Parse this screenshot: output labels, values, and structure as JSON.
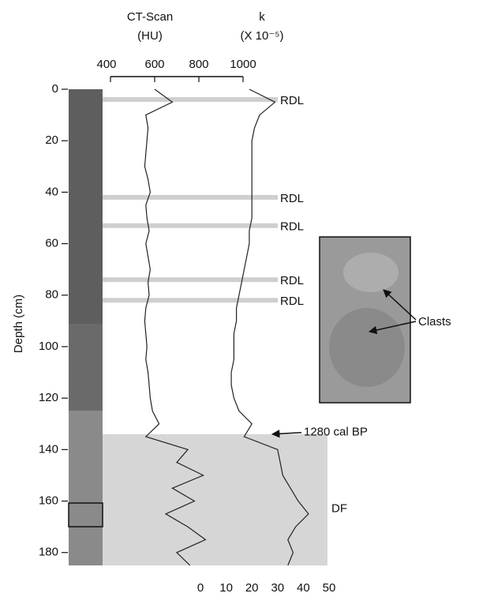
{
  "chart_data": {
    "type": "line",
    "ylabel": "Depth (cm)",
    "x_label": [
      "CT-Scan",
      "(HU)"
    ],
    "x2_label": [
      "k",
      "(X 10⁻⁵)"
    ],
    "ylim": [
      0,
      185
    ],
    "yticks": [
      0,
      20,
      40,
      60,
      80,
      100,
      120,
      140,
      160,
      180
    ],
    "xlim": [
      400,
      1000
    ],
    "xticks": [
      400,
      600,
      800,
      1000
    ],
    "x2lim": [
      0,
      50
    ],
    "x2ticks": [
      0,
      10,
      20,
      30,
      40,
      50
    ],
    "depth": [
      0,
      5,
      10,
      15,
      20,
      25,
      30,
      35,
      40,
      45,
      50,
      55,
      60,
      65,
      70,
      75,
      80,
      85,
      90,
      95,
      100,
      105,
      110,
      115,
      120,
      125,
      130,
      135,
      140,
      145,
      150,
      155,
      160,
      165,
      170,
      175,
      180,
      185
    ],
    "series": [
      {
        "color": "#222222",
        "axis": "x",
        "values": [
          600,
          680,
          560,
          570,
          565,
          560,
          555,
          570,
          580,
          560,
          565,
          575,
          560,
          570,
          580,
          570,
          575,
          560,
          555,
          560,
          565,
          560,
          570,
          575,
          580,
          590,
          620,
          560,
          750,
          700,
          820,
          680,
          780,
          650,
          750,
          830,
          700,
          760
        ]
      },
      {
        "color": "#222222",
        "axis": "x2",
        "values": [
          19,
          29,
          23,
          21,
          20,
          20,
          20,
          20,
          20,
          20,
          20,
          19,
          19,
          18,
          17,
          16,
          15,
          14,
          14,
          13,
          13,
          13,
          12,
          12,
          13,
          15,
          20,
          17,
          30,
          31,
          32,
          35,
          38,
          42,
          37,
          34,
          36,
          34
        ]
      }
    ],
    "rdl": [
      {
        "text": "RDL",
        "depth": 4
      },
      {
        "text": "RDL",
        "depth": 42
      },
      {
        "text": "RDL",
        "depth": 53
      },
      {
        "text": "RDL",
        "depth": 74
      },
      {
        "text": "RDL",
        "depth": 82
      }
    ],
    "date_annotation": {
      "text": "1280 cal BP",
      "depth": 134
    },
    "df": {
      "text": "DF",
      "top": 134
    },
    "inset_label": "Clasts"
  }
}
